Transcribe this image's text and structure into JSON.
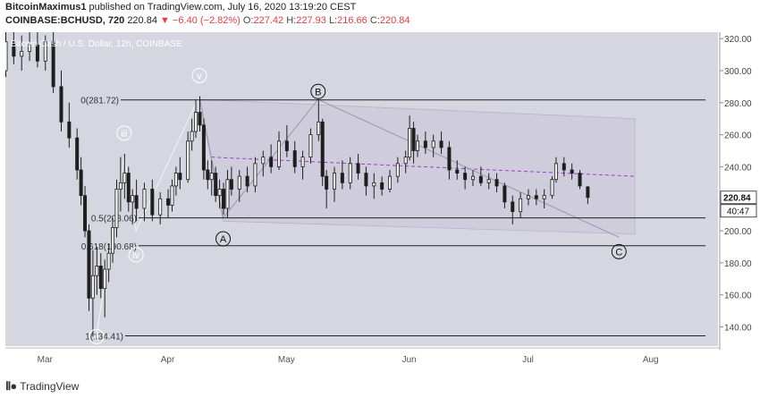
{
  "header": {
    "author": "BitcoinMaximus1",
    "published_text": "published on TradingView.com, July 16, 2020 13:19:20 CEST",
    "symbol": "COINBASE:BCHUSD, 720",
    "last_price": "220.84",
    "change": "▼ −6.40 (−2.82%)",
    "open_label": "O:",
    "open": "227.42",
    "high_label": "H:",
    "high": "227.93",
    "low_label": "L:",
    "low": "216.66",
    "close_label": "C:",
    "close": "220.84"
  },
  "footer": {
    "brand": "TradingView"
  },
  "colors": {
    "up": "#2b2b2b",
    "down": "#2b2b2b",
    "plot_bg": "#d6d6e0",
    "channel": "#cac7d8",
    "level_line": "#222222",
    "pitch_mid": "#9a3fc6"
  },
  "chart_data": {
    "type": "candlestick",
    "title": "Bitcoin Cash / U.S. Dollar, 12h, COINBASE",
    "x_tick_labels": [
      "Mar",
      "Apr",
      "May",
      "Jun",
      "Jul",
      "Aug"
    ],
    "y_tick_labels": [
      "140.00",
      "160.00",
      "180.00",
      "200.00",
      "220.00",
      "240.00",
      "260.00",
      "280.00",
      "300.00",
      "320.00"
    ],
    "ylim": [
      128,
      324
    ],
    "last_price_tag": "220.84",
    "countdown_tag": "40:47",
    "fib_levels": [
      {
        "label": "0(281.72)",
        "value": 281.72
      },
      {
        "label": "0.5(208.06)",
        "value": 208.06
      },
      {
        "label": "0.618(190.68)",
        "value": 190.68
      },
      {
        "label": "1(134.41)",
        "value": 134.41
      }
    ],
    "wave_labels": [
      {
        "label": "ii",
        "date": "2020-03-14",
        "price": 134
      },
      {
        "label": "iii",
        "date": "2020-03-21",
        "price": 261
      },
      {
        "label": "iv",
        "date": "2020-03-24",
        "price": 185
      },
      {
        "label": "v",
        "date": "2020-04-09",
        "price": 297
      },
      {
        "label": "A",
        "date": "2020-04-15",
        "price": 195
      },
      {
        "label": "B",
        "date": "2020-05-09",
        "price": 287
      },
      {
        "label": "C",
        "date": "2020-07-24",
        "price": 187
      }
    ],
    "candles": [
      {
        "d": "2020-02-20",
        "o": 300,
        "h": 330,
        "l": 296,
        "c": 318
      },
      {
        "d": "2020-02-22",
        "o": 318,
        "h": 328,
        "l": 304,
        "c": 309
      },
      {
        "d": "2020-02-24",
        "o": 309,
        "h": 322,
        "l": 300,
        "c": 312
      },
      {
        "d": "2020-02-26",
        "o": 312,
        "h": 324,
        "l": 306,
        "c": 316
      },
      {
        "d": "2020-02-28",
        "o": 316,
        "h": 326,
        "l": 302,
        "c": 306
      },
      {
        "d": "2020-03-01",
        "o": 306,
        "h": 322,
        "l": 300,
        "c": 318
      },
      {
        "d": "2020-03-03",
        "o": 318,
        "h": 330,
        "l": 286,
        "c": 290
      },
      {
        "d": "2020-03-05",
        "o": 290,
        "h": 300,
        "l": 262,
        "c": 268
      },
      {
        "d": "2020-03-07",
        "o": 268,
        "h": 280,
        "l": 252,
        "c": 258
      },
      {
        "d": "2020-03-09",
        "o": 258,
        "h": 264,
        "l": 232,
        "c": 238
      },
      {
        "d": "2020-03-10",
        "o": 238,
        "h": 246,
        "l": 216,
        "c": 222
      },
      {
        "d": "2020-03-11",
        "o": 222,
        "h": 228,
        "l": 196,
        "c": 200
      },
      {
        "d": "2020-03-12",
        "o": 200,
        "h": 204,
        "l": 150,
        "c": 158
      },
      {
        "d": "2020-03-13",
        "o": 158,
        "h": 188,
        "l": 134,
        "c": 172
      },
      {
        "d": "2020-03-14",
        "o": 172,
        "h": 190,
        "l": 160,
        "c": 178
      },
      {
        "d": "2020-03-15",
        "o": 178,
        "h": 186,
        "l": 158,
        "c": 164
      },
      {
        "d": "2020-03-16",
        "o": 164,
        "h": 182,
        "l": 146,
        "c": 176
      },
      {
        "d": "2020-03-17",
        "o": 176,
        "h": 192,
        "l": 168,
        "c": 186
      },
      {
        "d": "2020-03-18",
        "o": 186,
        "h": 208,
        "l": 180,
        "c": 202
      },
      {
        "d": "2020-03-19",
        "o": 202,
        "h": 232,
        "l": 196,
        "c": 226
      },
      {
        "d": "2020-03-20",
        "o": 226,
        "h": 246,
        "l": 212,
        "c": 230
      },
      {
        "d": "2020-03-21",
        "o": 230,
        "h": 248,
        "l": 220,
        "c": 236
      },
      {
        "d": "2020-03-22",
        "o": 236,
        "h": 240,
        "l": 212,
        "c": 218
      },
      {
        "d": "2020-03-23",
        "o": 218,
        "h": 226,
        "l": 204,
        "c": 222
      },
      {
        "d": "2020-03-24",
        "o": 222,
        "h": 232,
        "l": 206,
        "c": 214
      },
      {
        "d": "2020-03-26",
        "o": 214,
        "h": 230,
        "l": 206,
        "c": 226
      },
      {
        "d": "2020-03-28",
        "o": 226,
        "h": 232,
        "l": 206,
        "c": 210
      },
      {
        "d": "2020-03-30",
        "o": 210,
        "h": 224,
        "l": 204,
        "c": 220
      },
      {
        "d": "2020-04-01",
        "o": 220,
        "h": 226,
        "l": 208,
        "c": 216
      },
      {
        "d": "2020-04-02",
        "o": 216,
        "h": 232,
        "l": 212,
        "c": 228
      },
      {
        "d": "2020-04-03",
        "o": 228,
        "h": 240,
        "l": 222,
        "c": 236
      },
      {
        "d": "2020-04-04",
        "o": 236,
        "h": 246,
        "l": 226,
        "c": 232
      },
      {
        "d": "2020-04-06",
        "o": 232,
        "h": 262,
        "l": 230,
        "c": 256
      },
      {
        "d": "2020-04-07",
        "o": 256,
        "h": 270,
        "l": 250,
        "c": 262
      },
      {
        "d": "2020-04-08",
        "o": 262,
        "h": 282,
        "l": 258,
        "c": 274
      },
      {
        "d": "2020-04-09",
        "o": 274,
        "h": 284,
        "l": 262,
        "c": 266
      },
      {
        "d": "2020-04-10",
        "o": 266,
        "h": 270,
        "l": 232,
        "c": 238
      },
      {
        "d": "2020-04-11",
        "o": 238,
        "h": 244,
        "l": 226,
        "c": 232
      },
      {
        "d": "2020-04-12",
        "o": 232,
        "h": 244,
        "l": 222,
        "c": 236
      },
      {
        "d": "2020-04-13",
        "o": 236,
        "h": 240,
        "l": 218,
        "c": 222
      },
      {
        "d": "2020-04-14",
        "o": 222,
        "h": 232,
        "l": 214,
        "c": 226
      },
      {
        "d": "2020-04-15",
        "o": 226,
        "h": 230,
        "l": 210,
        "c": 214
      },
      {
        "d": "2020-04-16",
        "o": 214,
        "h": 238,
        "l": 208,
        "c": 232
      },
      {
        "d": "2020-04-17",
        "o": 232,
        "h": 240,
        "l": 222,
        "c": 226
      },
      {
        "d": "2020-04-19",
        "o": 226,
        "h": 238,
        "l": 218,
        "c": 234
      },
      {
        "d": "2020-04-21",
        "o": 234,
        "h": 240,
        "l": 224,
        "c": 228
      },
      {
        "d": "2020-04-23",
        "o": 228,
        "h": 246,
        "l": 224,
        "c": 242
      },
      {
        "d": "2020-04-25",
        "o": 242,
        "h": 250,
        "l": 234,
        "c": 246
      },
      {
        "d": "2020-04-27",
        "o": 246,
        "h": 254,
        "l": 236,
        "c": 240
      },
      {
        "d": "2020-04-29",
        "o": 240,
        "h": 262,
        "l": 238,
        "c": 256
      },
      {
        "d": "2020-05-01",
        "o": 256,
        "h": 266,
        "l": 246,
        "c": 250
      },
      {
        "d": "2020-05-03",
        "o": 250,
        "h": 256,
        "l": 236,
        "c": 240
      },
      {
        "d": "2020-05-05",
        "o": 240,
        "h": 250,
        "l": 232,
        "c": 246
      },
      {
        "d": "2020-05-07",
        "o": 246,
        "h": 264,
        "l": 242,
        "c": 260
      },
      {
        "d": "2020-05-09",
        "o": 260,
        "h": 282,
        "l": 256,
        "c": 268
      },
      {
        "d": "2020-05-10",
        "o": 268,
        "h": 270,
        "l": 228,
        "c": 234
      },
      {
        "d": "2020-05-11",
        "o": 234,
        "h": 238,
        "l": 214,
        "c": 226
      },
      {
        "d": "2020-05-13",
        "o": 226,
        "h": 240,
        "l": 218,
        "c": 236
      },
      {
        "d": "2020-05-15",
        "o": 236,
        "h": 244,
        "l": 226,
        "c": 230
      },
      {
        "d": "2020-05-17",
        "o": 230,
        "h": 246,
        "l": 226,
        "c": 242
      },
      {
        "d": "2020-05-19",
        "o": 242,
        "h": 248,
        "l": 232,
        "c": 236
      },
      {
        "d": "2020-05-21",
        "o": 236,
        "h": 240,
        "l": 222,
        "c": 228
      },
      {
        "d": "2020-05-23",
        "o": 228,
        "h": 236,
        "l": 220,
        "c": 230
      },
      {
        "d": "2020-05-25",
        "o": 230,
        "h": 234,
        "l": 222,
        "c": 226
      },
      {
        "d": "2020-05-27",
        "o": 226,
        "h": 238,
        "l": 224,
        "c": 234
      },
      {
        "d": "2020-05-29",
        "o": 234,
        "h": 246,
        "l": 230,
        "c": 242
      },
      {
        "d": "2020-05-31",
        "o": 242,
        "h": 250,
        "l": 236,
        "c": 246
      },
      {
        "d": "2020-06-01",
        "o": 246,
        "h": 272,
        "l": 244,
        "c": 264
      },
      {
        "d": "2020-06-02",
        "o": 264,
        "h": 268,
        "l": 242,
        "c": 250
      },
      {
        "d": "2020-06-03",
        "o": 250,
        "h": 260,
        "l": 246,
        "c": 256
      },
      {
        "d": "2020-06-05",
        "o": 256,
        "h": 262,
        "l": 248,
        "c": 252
      },
      {
        "d": "2020-06-07",
        "o": 252,
        "h": 260,
        "l": 246,
        "c": 256
      },
      {
        "d": "2020-06-09",
        "o": 256,
        "h": 262,
        "l": 248,
        "c": 252
      },
      {
        "d": "2020-06-11",
        "o": 252,
        "h": 256,
        "l": 232,
        "c": 238
      },
      {
        "d": "2020-06-13",
        "o": 238,
        "h": 244,
        "l": 232,
        "c": 236
      },
      {
        "d": "2020-06-15",
        "o": 236,
        "h": 240,
        "l": 226,
        "c": 232
      },
      {
        "d": "2020-06-17",
        "o": 232,
        "h": 238,
        "l": 228,
        "c": 234
      },
      {
        "d": "2020-06-19",
        "o": 234,
        "h": 240,
        "l": 228,
        "c": 230
      },
      {
        "d": "2020-06-21",
        "o": 230,
        "h": 236,
        "l": 226,
        "c": 232
      },
      {
        "d": "2020-06-23",
        "o": 232,
        "h": 236,
        "l": 224,
        "c": 228
      },
      {
        "d": "2020-06-25",
        "o": 228,
        "h": 230,
        "l": 214,
        "c": 218
      },
      {
        "d": "2020-06-27",
        "o": 218,
        "h": 222,
        "l": 204,
        "c": 212
      },
      {
        "d": "2020-06-29",
        "o": 212,
        "h": 224,
        "l": 208,
        "c": 220
      },
      {
        "d": "2020-07-01",
        "o": 220,
        "h": 226,
        "l": 216,
        "c": 222
      },
      {
        "d": "2020-07-03",
        "o": 222,
        "h": 226,
        "l": 216,
        "c": 220
      },
      {
        "d": "2020-07-05",
        "o": 220,
        "h": 226,
        "l": 214,
        "c": 222
      },
      {
        "d": "2020-07-07",
        "o": 222,
        "h": 234,
        "l": 220,
        "c": 232
      },
      {
        "d": "2020-07-08",
        "o": 232,
        "h": 246,
        "l": 230,
        "c": 242
      },
      {
        "d": "2020-07-10",
        "o": 242,
        "h": 246,
        "l": 234,
        "c": 238
      },
      {
        "d": "2020-07-12",
        "o": 238,
        "h": 242,
        "l": 232,
        "c": 236
      },
      {
        "d": "2020-07-14",
        "o": 236,
        "h": 238,
        "l": 226,
        "c": 228
      },
      {
        "d": "2020-07-16",
        "o": 227.42,
        "h": 227.93,
        "l": 216.66,
        "c": 220.84
      }
    ]
  }
}
